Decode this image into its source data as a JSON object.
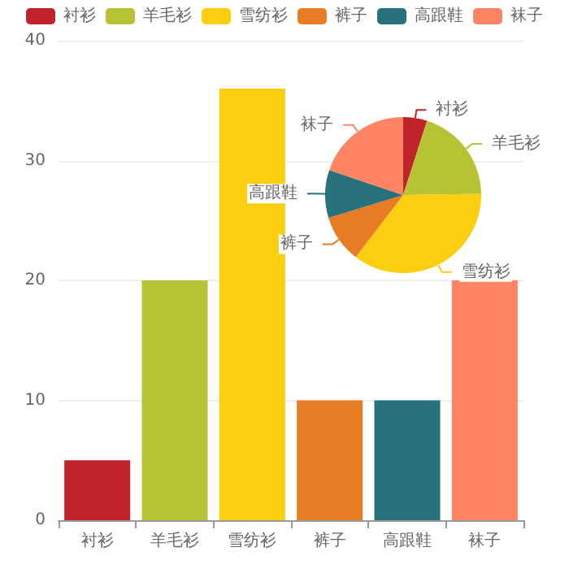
{
  "chart_data": [
    {
      "type": "bar",
      "categories": [
        "衬衫",
        "羊毛衫",
        "雪纺衫",
        "裤子",
        "高跟鞋",
        "袜子"
      ],
      "values": [
        5,
        20,
        36,
        10,
        10,
        20
      ],
      "colors": [
        "#c1232b",
        "#b5c334",
        "#fcce10",
        "#e87c25",
        "#27727b",
        "#fe8463"
      ],
      "ylim": [
        0,
        40
      ],
      "yticks": [
        0,
        10,
        20,
        30,
        40
      ],
      "grid": "y"
    },
    {
      "type": "pie",
      "categories": [
        "衬衫",
        "羊毛衫",
        "雪纺衫",
        "裤子",
        "高跟鞋",
        "袜子"
      ],
      "values": [
        4.95,
        19.8,
        35.64,
        9.9,
        9.9,
        19.8
      ],
      "colors": [
        "#c1232b",
        "#b5c334",
        "#fcce10",
        "#e87c25",
        "#27727b",
        "#fe8463"
      ],
      "legend": "top"
    }
  ]
}
